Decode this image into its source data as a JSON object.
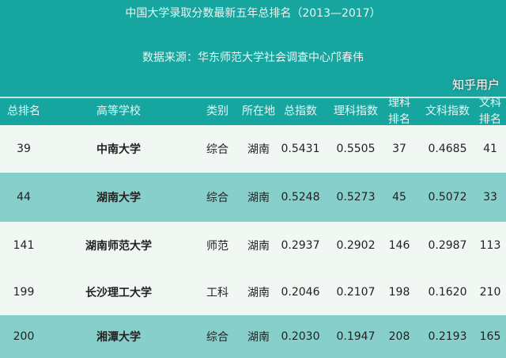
{
  "title": "中国大学录取分数最新五年总排名（2013—2017）",
  "source": "数据来源：华东师范大学社会调查中心邝春伟",
  "columns": [
    "总排名",
    "高等学校",
    "类别",
    "所在地",
    "总指数",
    "理科指数",
    "理科\n排名",
    "文科指数",
    "文科\n排名"
  ],
  "rows": [
    [
      "39",
      "中南大学",
      "综合",
      "湖南",
      "0.5431",
      "0.5505",
      "37",
      "0.4685",
      "41"
    ],
    [
      "44",
      "湖南大学",
      "综合",
      "湖南",
      "0.5248",
      "0.5273",
      "45",
      "0.5072",
      "33"
    ],
    [
      "141",
      "湖南师范大学",
      "师范",
      "湖南",
      "0.2937",
      "0.2902",
      "146",
      "0.2987",
      "113"
    ],
    [
      "199",
      "长沙理工大学",
      "工科",
      "湖南",
      "0.2046",
      "0.2107",
      "198",
      "0.1620",
      "210"
    ],
    [
      "200",
      "湘潭大学",
      "综合",
      "湖南",
      "0.2030",
      "0.1947",
      "208",
      "0.2193",
      "165"
    ]
  ],
  "watermark": "知乎用户",
  "colors": {
    "header": "#17a69f",
    "row_light": "#f1f8f3",
    "row_teal": "#86cfcb"
  }
}
